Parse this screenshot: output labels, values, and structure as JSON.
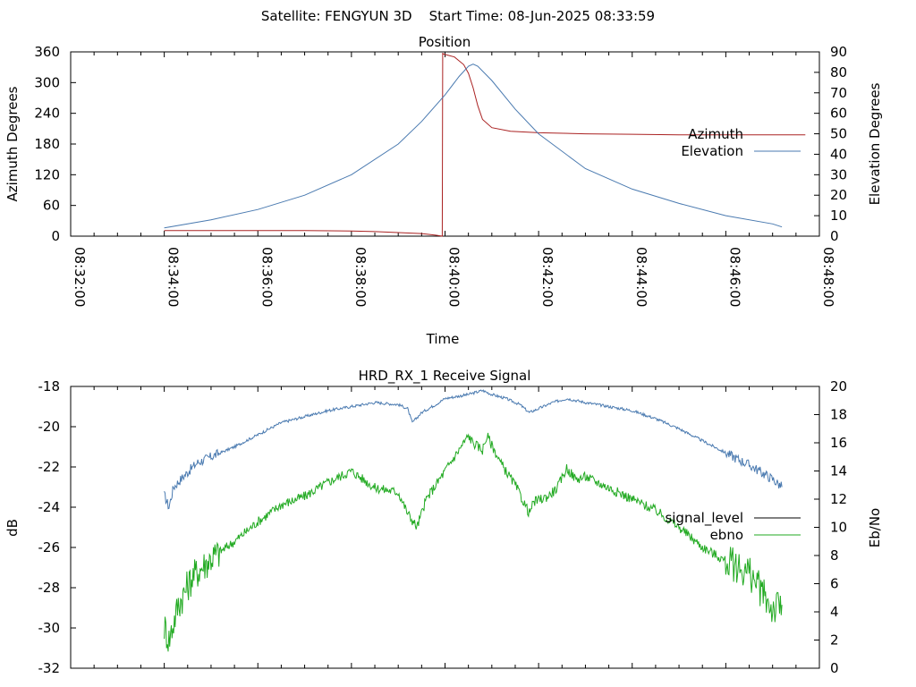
{
  "header": {
    "title": "Satellite: FENGYUN 3D    Start Time: 08-Jun-2025 08:33:59"
  },
  "chart_data": [
    {
      "type": "line",
      "title": "Position",
      "xlabel": "Time",
      "ylabel": "Azimuth Degrees",
      "y2label": "Elevation Degrees",
      "xlim_minutes": [
        0,
        16
      ],
      "x_tick_labels": [
        "08:32:00",
        "08:34:00",
        "08:36:00",
        "08:38:00",
        "08:40:00",
        "08:42:00",
        "08:44:00",
        "08:46:00",
        "08:48:00"
      ],
      "x_tick_minutes": [
        0,
        2,
        4,
        6,
        8,
        10,
        12,
        14,
        16
      ],
      "ylim": [
        0,
        360
      ],
      "y_ticks": [
        0,
        60,
        120,
        180,
        240,
        300,
        360
      ],
      "y2lim": [
        0,
        90
      ],
      "y2_ticks": [
        0,
        10,
        20,
        30,
        40,
        50,
        60,
        70,
        80,
        90
      ],
      "legend_position": "right",
      "series": [
        {
          "name": "Azimuth",
          "axis": "y",
          "color": "#aa2222",
          "x_minutes": [
            2.0,
            3.0,
            4.0,
            5.0,
            6.0,
            6.5,
            7.0,
            7.5,
            7.8,
            7.94,
            7.95,
            7.96,
            8.0,
            8.2,
            8.4,
            8.5,
            8.6,
            8.7,
            8.8,
            9.0,
            9.4,
            10.0,
            11.0,
            12.0,
            13.0,
            14.0,
            15.0,
            15.7
          ],
          "values": [
            11,
            11,
            11,
            11,
            10,
            9,
            7,
            5,
            2,
            0,
            358,
            356,
            355,
            350,
            335,
            318,
            290,
            255,
            228,
            212,
            205,
            202,
            200,
            199,
            198,
            198,
            198,
            198
          ]
        },
        {
          "name": "Elevation",
          "axis": "y2",
          "color": "#4a7ab0",
          "x_minutes": [
            2.0,
            3.0,
            4.0,
            5.0,
            6.0,
            7.0,
            7.5,
            8.0,
            8.3,
            8.5,
            8.6,
            8.7,
            9.0,
            9.5,
            10.0,
            11.0,
            12.0,
            13.0,
            14.0,
            15.0,
            15.2
          ],
          "values": [
            4,
            8,
            13,
            20,
            30,
            45,
            56,
            69,
            78,
            83,
            84,
            83,
            76,
            62,
            50,
            33,
            23,
            16,
            10,
            6,
            4.5
          ]
        }
      ]
    },
    {
      "type": "line",
      "title": "HRD_RX_1 Receive Signal",
      "ylabel": "dB",
      "y2label": "Eb/No",
      "xlim_minutes": [
        0,
        16
      ],
      "ylim": [
        -32,
        -18
      ],
      "y_ticks": [
        -32,
        -30,
        -28,
        -26,
        -24,
        -22,
        -20,
        -18
      ],
      "y2lim": [
        0,
        20
      ],
      "y2_ticks": [
        0,
        2,
        4,
        6,
        8,
        10,
        12,
        14,
        16,
        18,
        20
      ],
      "legend_position": "right",
      "series": [
        {
          "name": "signal_level",
          "axis": "y",
          "color": "#4a7ab0",
          "x_minutes": [
            2.0,
            2.1,
            2.2,
            2.4,
            2.7,
            3.0,
            3.5,
            4.0,
            4.5,
            5.0,
            5.5,
            6.0,
            6.5,
            7.0,
            7.2,
            7.3,
            7.5,
            7.8,
            8.0,
            8.5,
            8.8,
            9.0,
            9.3,
            9.6,
            9.8,
            10.0,
            10.3,
            10.6,
            11.0,
            11.5,
            12.0,
            12.5,
            13.0,
            13.5,
            14.0,
            14.5,
            15.0,
            15.2
          ],
          "values": [
            -23.4,
            -24.0,
            -23.0,
            -22.5,
            -21.8,
            -21.5,
            -21.0,
            -20.4,
            -19.8,
            -19.5,
            -19.2,
            -19.0,
            -18.8,
            -18.9,
            -19.1,
            -19.8,
            -19.3,
            -18.9,
            -18.6,
            -18.4,
            -18.2,
            -18.4,
            -18.6,
            -18.9,
            -19.3,
            -19.1,
            -18.8,
            -18.6,
            -18.8,
            -19.0,
            -19.2,
            -19.6,
            -20.1,
            -20.7,
            -21.3,
            -21.9,
            -22.6,
            -23.0
          ]
        },
        {
          "name": "ebno",
          "axis": "y2",
          "color": "#22aa22",
          "x_minutes": [
            2.0,
            2.1,
            2.3,
            2.6,
            3.0,
            3.5,
            4.0,
            4.5,
            5.0,
            5.5,
            6.0,
            6.5,
            7.0,
            7.2,
            7.4,
            7.6,
            7.9,
            8.2,
            8.5,
            8.6,
            8.8,
            8.9,
            9.2,
            9.5,
            9.8,
            9.9,
            10.2,
            10.4,
            10.6,
            10.8,
            11.0,
            11.5,
            12.0,
            12.5,
            13.0,
            13.5,
            14.0,
            14.5,
            15.0,
            15.2
          ],
          "values": [
            3.0,
            2.0,
            4.5,
            6.5,
            7.8,
            9.0,
            10.4,
            11.6,
            12.2,
            13.2,
            14.0,
            12.8,
            12.5,
            11.0,
            10.0,
            12.0,
            13.5,
            15.0,
            16.5,
            16.0,
            15.5,
            16.5,
            14.5,
            13.0,
            11.0,
            11.8,
            12.2,
            12.8,
            14.2,
            13.4,
            13.6,
            12.8,
            12.0,
            11.2,
            10.0,
            8.6,
            7.6,
            6.8,
            4.2,
            4.5
          ]
        }
      ]
    }
  ]
}
